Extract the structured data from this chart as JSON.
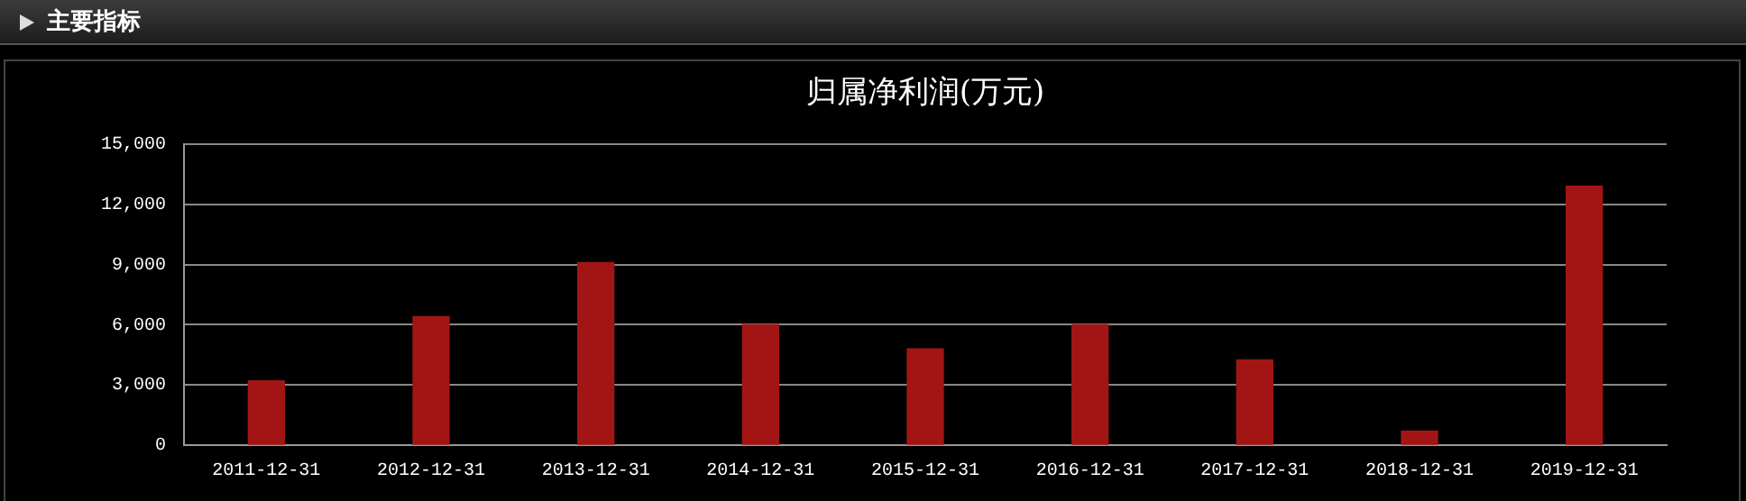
{
  "chart_data": {
    "type": "bar",
    "title": "归属净利润(万元)",
    "annotations": [
      "主要指标"
    ],
    "categories": [
      "2011-12-31",
      "2012-12-31",
      "2013-12-31",
      "2014-12-31",
      "2015-12-31",
      "2016-12-31",
      "2017-12-31",
      "2018-12-31",
      "2019-12-31"
    ],
    "values": [
      3200,
      6400,
      9100,
      6000,
      4800,
      6000,
      4250,
      700,
      12900
    ],
    "color": "#a31515",
    "ylim": [
      0,
      15000
    ],
    "yticks": [
      {
        "value": 0,
        "label": "0"
      },
      {
        "value": 3000,
        "label": "3,000"
      },
      {
        "value": 6000,
        "label": "6,000"
      },
      {
        "value": 9000,
        "label": "9,000"
      },
      {
        "value": 12000,
        "label": "12,000"
      },
      {
        "value": 15000,
        "label": "15,000"
      }
    ],
    "grid": "y",
    "legend": false
  }
}
